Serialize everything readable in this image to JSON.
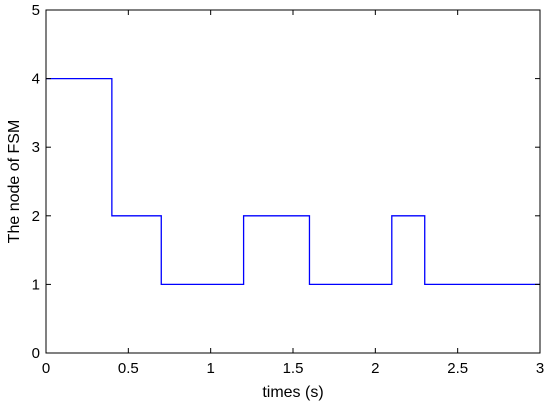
{
  "chart_data": {
    "type": "line",
    "step": "post",
    "title": "",
    "xlabel": "times (s)",
    "ylabel": "The node of FSM",
    "xlim": [
      0,
      3
    ],
    "ylim": [
      0,
      5
    ],
    "xticks": [
      0,
      0.5,
      1,
      1.5,
      2,
      2.5,
      3
    ],
    "xtick_labels": [
      "0",
      "0.5",
      "1",
      "1.5",
      "2",
      "2.5",
      "3"
    ],
    "yticks": [
      0,
      1,
      2,
      3,
      4,
      5
    ],
    "ytick_labels": [
      "0",
      "1",
      "2",
      "3",
      "4",
      "5"
    ],
    "grid": false,
    "series": [
      {
        "color": "#0000ff",
        "x": [
          0,
          0.4,
          0.7,
          1.2,
          1.6,
          2.1,
          2.3,
          3
        ],
        "y": [
          4,
          2,
          1,
          2,
          1,
          2,
          1,
          1
        ]
      }
    ]
  }
}
